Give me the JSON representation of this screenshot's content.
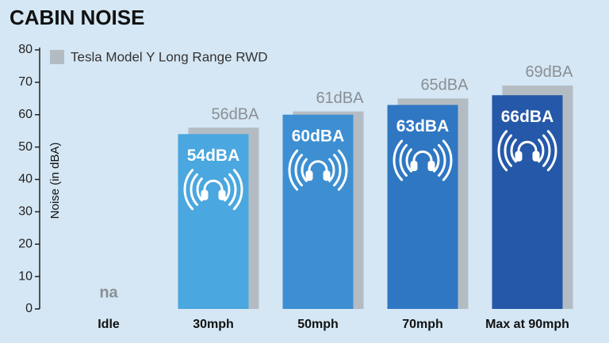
{
  "chart_data": {
    "type": "bar",
    "title": "CABIN NOISE",
    "y_label": "Noise (in dBA)",
    "categories": [
      "Idle",
      "30mph",
      "50mph",
      "70mph",
      "Max at 90mph"
    ],
    "series": [
      {
        "values": [
          null,
          54,
          60,
          63,
          66
        ],
        "value_labels": [
          "na",
          "54dBA",
          "60dBA",
          "63dBA",
          "66dBA"
        ],
        "colors": [
          null,
          "#4aa7df",
          "#3d8fd2",
          "#2f77c2",
          "#2558a8"
        ]
      },
      {
        "name": "Tesla Model Y Long Range RWD",
        "color": "#b4bcc3",
        "values": [
          null,
          56,
          61,
          65,
          69
        ],
        "value_labels": [
          null,
          "56dBA",
          "61dBA",
          "65dBA",
          "69dBA"
        ]
      }
    ],
    "ylim": [
      0,
      80
    ],
    "yticks": [
      0,
      10,
      20,
      30,
      40,
      50,
      60,
      70,
      80
    ],
    "legend": "top-left"
  }
}
